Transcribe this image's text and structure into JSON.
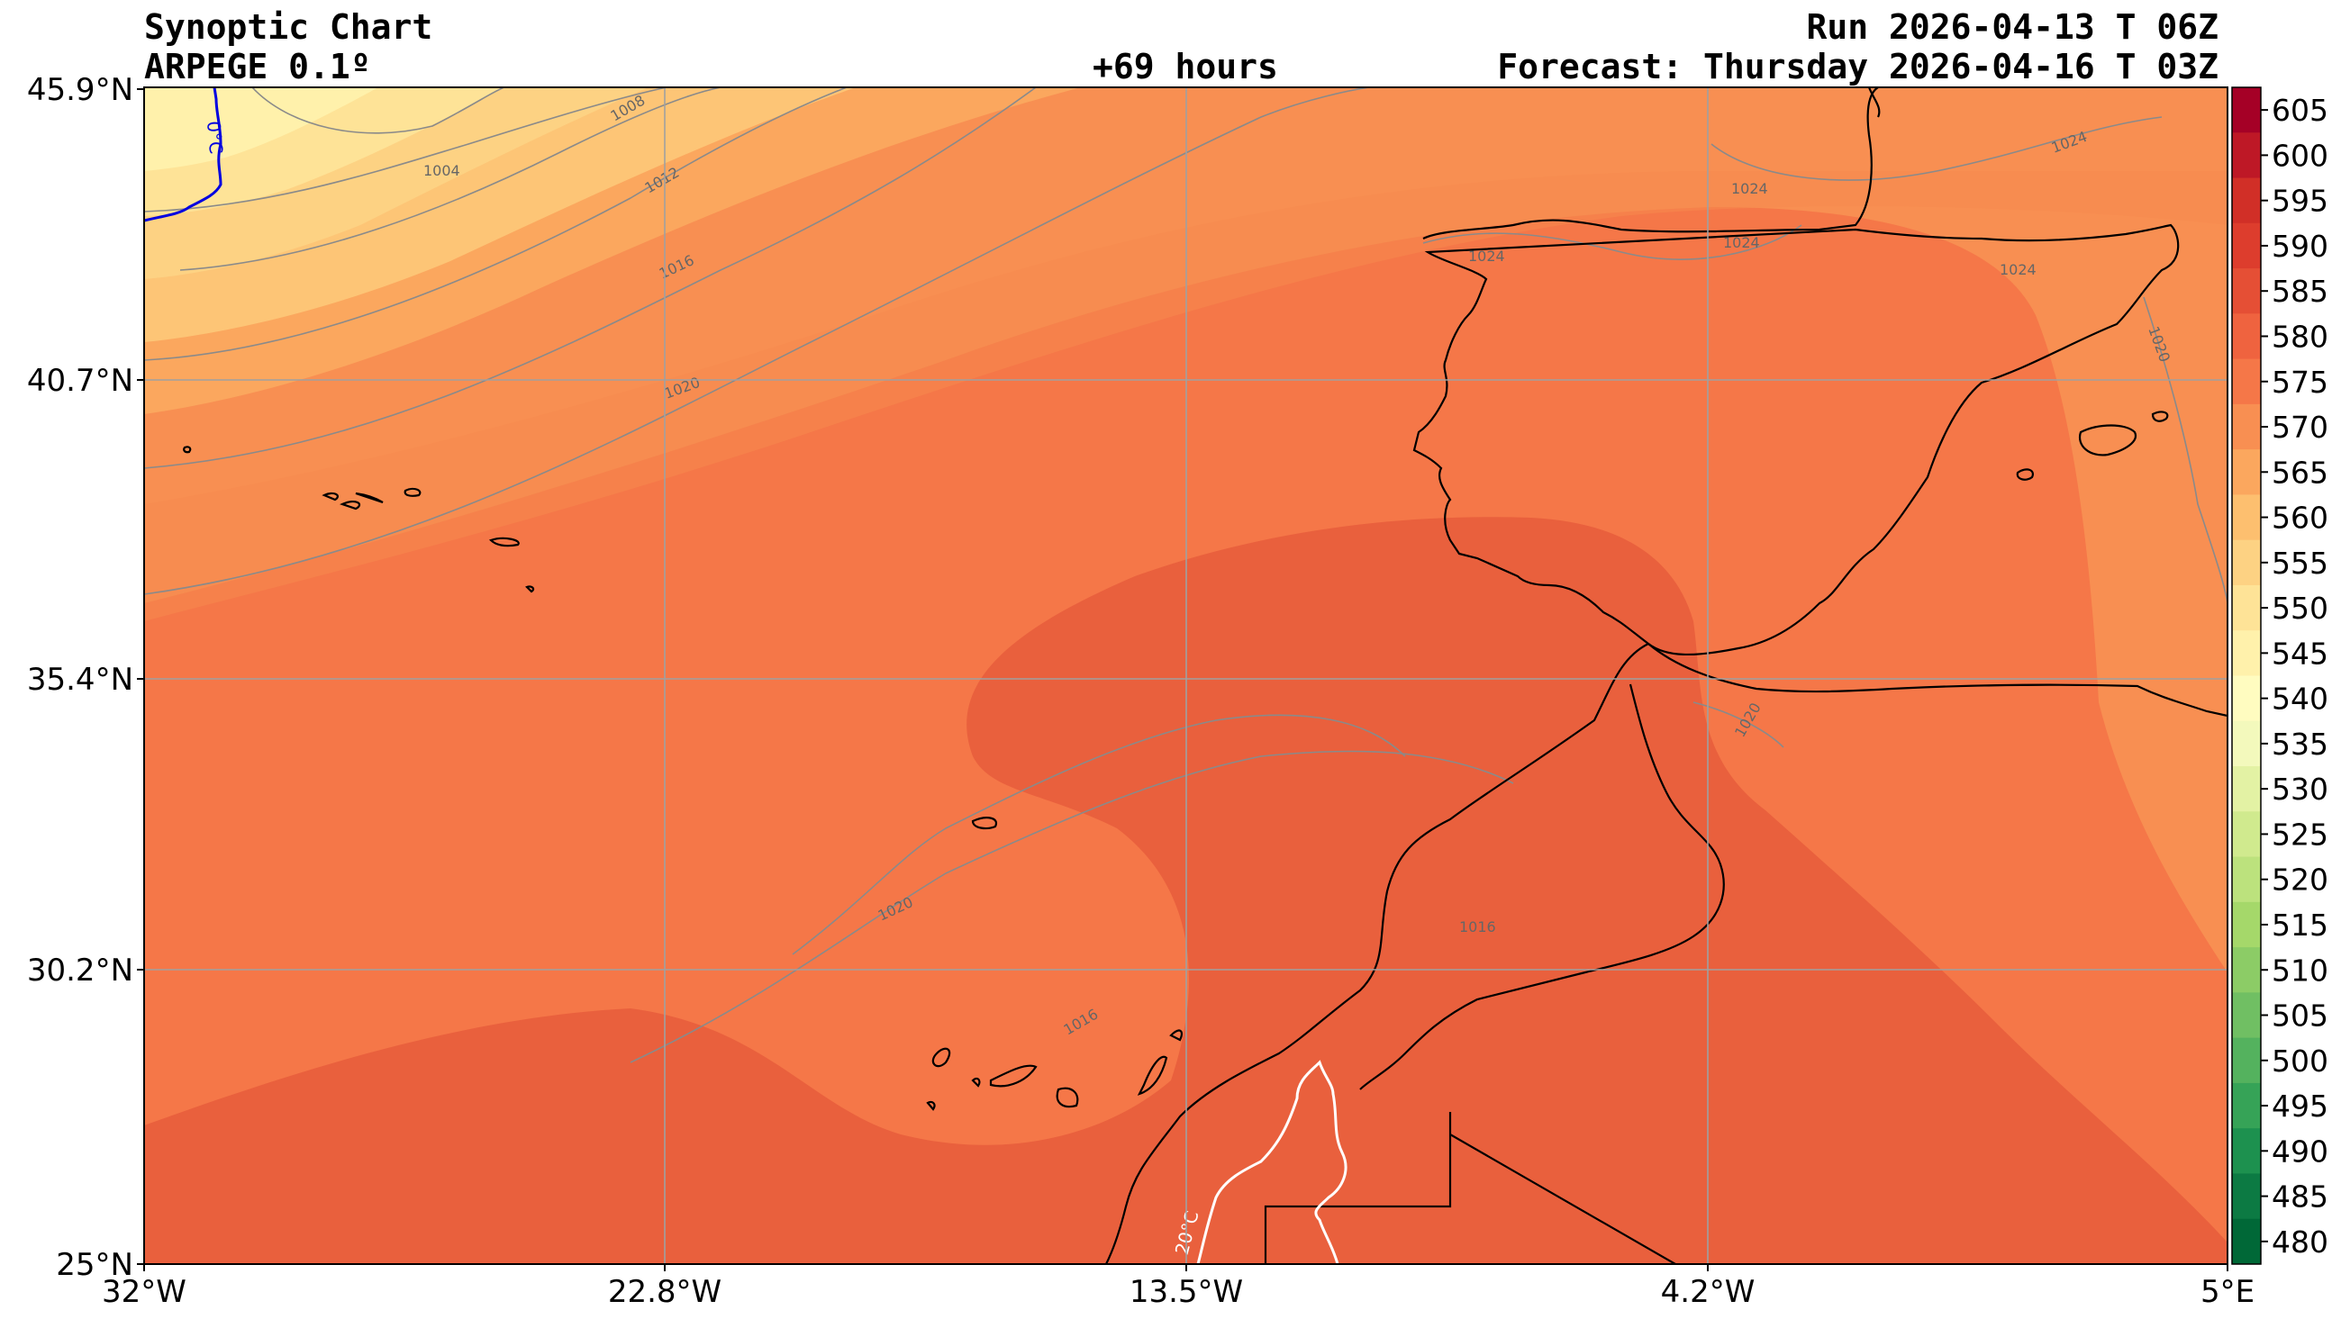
{
  "header": {
    "title": "Synoptic Chart",
    "model": "ARPEGE 0.1º",
    "lead_time": "+69 hours",
    "run": "Run 2026-04-13 T 06Z",
    "forecast": "Forecast: Thursday 2026-04-16 T 03Z"
  },
  "axes": {
    "lat_labels": [
      "45.9°N",
      "40.7°N",
      "35.4°N",
      "30.2°N",
      "25°N"
    ],
    "lon_labels": [
      "32°W",
      "22.8°W",
      "13.5°W",
      "4.2°W",
      "5°E"
    ]
  },
  "colorbar": {
    "labels": [
      "605",
      "600",
      "595",
      "590",
      "585",
      "580",
      "575",
      "570",
      "565",
      "560",
      "555",
      "550",
      "545",
      "540",
      "535",
      "530",
      "525",
      "520",
      "515",
      "510",
      "505",
      "500",
      "495",
      "490",
      "485",
      "480"
    ],
    "colors": [
      "#a50026",
      "#be1826",
      "#d12f27",
      "#dd3d2d",
      "#e54f35",
      "#ef633f",
      "#f57748",
      "#f88f52",
      "#fba75e",
      "#fdbf6f",
      "#fdd283",
      "#fee397",
      "#fff1ab",
      "#fffcc0",
      "#f3f9bc",
      "#e3f2a4",
      "#d0ea8e",
      "#bce27d",
      "#a5d86a",
      "#8ccc66",
      "#70bf63",
      "#54b25e",
      "#36a357",
      "#1d914f",
      "#0c7a43",
      "#006837"
    ]
  },
  "map_labels": {
    "isobars": [
      "1004",
      "1008",
      "1012",
      "1016",
      "1020",
      "1020",
      "1016",
      "1024",
      "1024",
      "1024",
      "1024",
      "1024",
      "1020",
      "1020",
      "1016"
    ],
    "isotherms": [
      "0°C",
      "20°C"
    ]
  }
}
